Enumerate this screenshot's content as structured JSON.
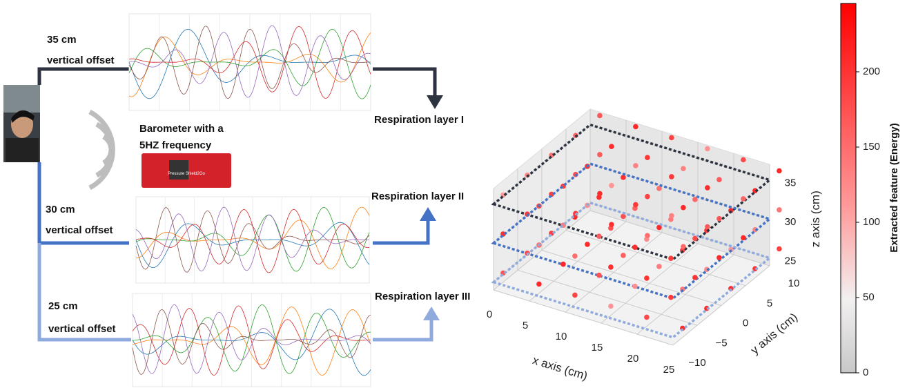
{
  "layers": [
    {
      "offset": "35 cm",
      "caption": "vertical offset",
      "output": "Respiration layer I"
    },
    {
      "offset": "30 cm",
      "caption": "vertical offset",
      "output": "Respiration layer II"
    },
    {
      "offset": "25 cm",
      "caption": "vertical offset",
      "output": "Respiration layer III"
    }
  ],
  "barometer": {
    "lines": [
      "Barometer with a",
      "5HZ frequency"
    ],
    "board": "Pressure Shield2Go"
  },
  "plot3d": {
    "x_label": "x axis (cm)",
    "y_label": "y axis (cm)",
    "z_label": "z axis (cm)",
    "x_ticks": [
      0,
      5,
      10,
      15,
      20,
      25
    ],
    "y_ticks": [
      {
        "value": -10,
        "label": "−10"
      },
      {
        "value": -5,
        "label": "−5"
      },
      0,
      5,
      10
    ],
    "z_ticks": [
      25,
      30,
      35
    ]
  },
  "colorbar": {
    "label": "Extracted feature (Energy)",
    "ticks": [
      0,
      50,
      100,
      150,
      200
    ]
  }
}
